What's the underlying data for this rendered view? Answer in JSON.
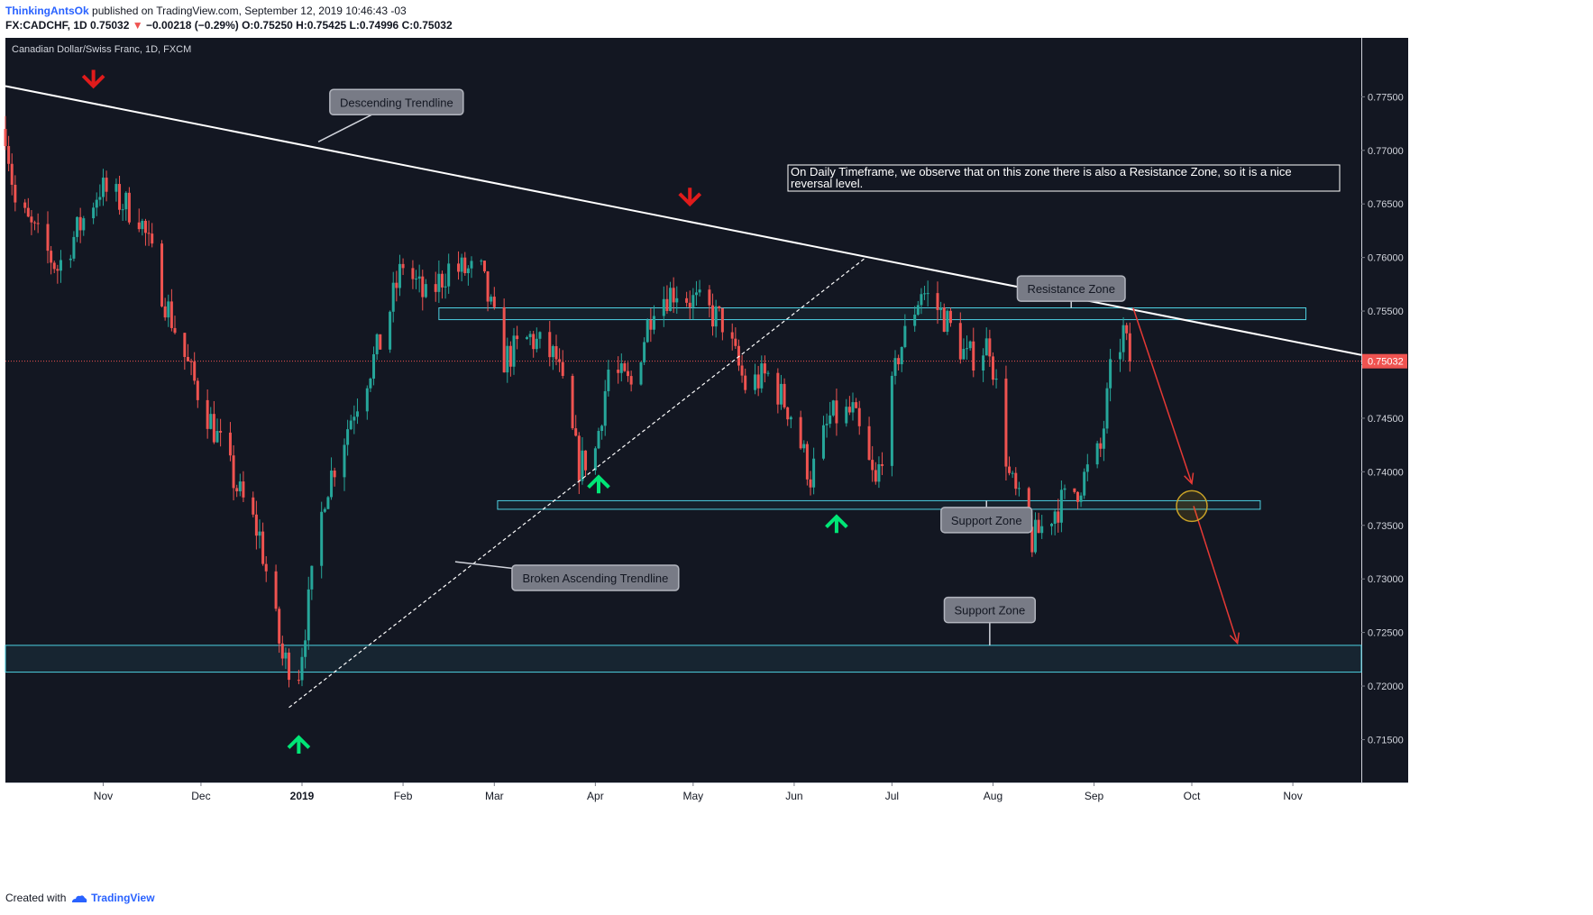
{
  "header": {
    "author": "ThinkingAntsOk",
    "published_text": "published on TradingView.com, September 12, 2019 10:46:43 -03",
    "symbol_line": {
      "symbol": "FX:CADCHF, 1D",
      "last": "0.75032",
      "change_arrow": "▼",
      "change": "−0.00218 (−0.29%)",
      "open": "O:0.75250",
      "high": "H:0.75425",
      "low": "L:0.74996",
      "close": "C:0.75032"
    }
  },
  "footer": {
    "created_with": "Created with",
    "brand": "TradingView",
    "logo_icon": "tradingview-cloud-icon"
  },
  "colors": {
    "background": "#131722",
    "up": "#26a69a",
    "down": "#ef5350",
    "trendline": "#ffffff",
    "zone_border": "#4dd0e1",
    "price_line": "#ef5350",
    "callout_bg": "#787b86",
    "up_arrow": "#00e676",
    "down_arrow": "#e01b1b"
  },
  "chart_data": {
    "type": "candlestick",
    "title": "Canadian Dollar/Swiss Franc, 1D, FXCM",
    "price_axis": {
      "ticks": [
        "0.77500",
        "0.77000",
        "0.76500",
        "0.76000",
        "0.75500",
        "0.75000",
        "0.74500",
        "0.74000",
        "0.73500",
        "0.73000",
        "0.72500",
        "0.72000",
        "0.71500"
      ],
      "last_price_label": "0.75032",
      "range": [
        0.711,
        0.7805
      ]
    },
    "time_axis": {
      "ticks": [
        "Nov",
        "Dec",
        "2019",
        "Feb",
        "Mar",
        "Apr",
        "May",
        "Jun",
        "Jul",
        "Aug",
        "Sep",
        "Oct",
        "Nov"
      ],
      "range": [
        "2018-10-02",
        "2019-11-22"
      ]
    },
    "last_price": 0.75032,
    "key_points": [
      {
        "date": "2018-10-02",
        "price": 0.772
      },
      {
        "date": "2018-10-05",
        "price": 0.765
      },
      {
        "date": "2018-10-18",
        "price": 0.759
      },
      {
        "date": "2018-10-31",
        "price": 0.7665
      },
      {
        "date": "2018-11-12",
        "price": 0.764
      },
      {
        "date": "2018-11-20",
        "price": 0.756
      },
      {
        "date": "2018-11-28",
        "price": 0.749
      },
      {
        "date": "2018-12-05",
        "price": 0.744
      },
      {
        "date": "2018-12-12",
        "price": 0.7385
      },
      {
        "date": "2018-12-19",
        "price": 0.734
      },
      {
        "date": "2018-12-26",
        "price": 0.7225
      },
      {
        "date": "2018-12-31",
        "price": 0.7215
      },
      {
        "date": "2019-01-08",
        "price": 0.738
      },
      {
        "date": "2019-01-17",
        "price": 0.746
      },
      {
        "date": "2019-01-25",
        "price": 0.752
      },
      {
        "date": "2019-02-01",
        "price": 0.7595
      },
      {
        "date": "2019-02-08",
        "price": 0.756
      },
      {
        "date": "2019-02-15",
        "price": 0.759
      },
      {
        "date": "2019-02-25",
        "price": 0.7585
      },
      {
        "date": "2019-03-04",
        "price": 0.7505
      },
      {
        "date": "2019-03-12",
        "price": 0.7525
      },
      {
        "date": "2019-03-20",
        "price": 0.7505
      },
      {
        "date": "2019-03-27",
        "price": 0.7405
      },
      {
        "date": "2019-04-01",
        "price": 0.742
      },
      {
        "date": "2019-04-05",
        "price": 0.7495
      },
      {
        "date": "2019-04-12",
        "price": 0.748
      },
      {
        "date": "2019-04-19",
        "price": 0.756
      },
      {
        "date": "2019-04-26",
        "price": 0.757
      },
      {
        "date": "2019-05-03",
        "price": 0.7555
      },
      {
        "date": "2019-05-10",
        "price": 0.754
      },
      {
        "date": "2019-05-17",
        "price": 0.748
      },
      {
        "date": "2019-05-24",
        "price": 0.749
      },
      {
        "date": "2019-05-31",
        "price": 0.7455
      },
      {
        "date": "2019-06-06",
        "price": 0.7395
      },
      {
        "date": "2019-06-12",
        "price": 0.745
      },
      {
        "date": "2019-06-19",
        "price": 0.7455
      },
      {
        "date": "2019-06-26",
        "price": 0.7385
      },
      {
        "date": "2019-07-03",
        "price": 0.751
      },
      {
        "date": "2019-07-10",
        "price": 0.757
      },
      {
        "date": "2019-07-17",
        "price": 0.7545
      },
      {
        "date": "2019-07-24",
        "price": 0.7505
      },
      {
        "date": "2019-07-31",
        "price": 0.752
      },
      {
        "date": "2019-08-06",
        "price": 0.7395
      },
      {
        "date": "2019-08-13",
        "price": 0.7335
      },
      {
        "date": "2019-08-20",
        "price": 0.7365
      },
      {
        "date": "2019-08-27",
        "price": 0.7385
      },
      {
        "date": "2019-09-03",
        "price": 0.742
      },
      {
        "date": "2019-09-06",
        "price": 0.749
      },
      {
        "date": "2019-09-10",
        "price": 0.753
      },
      {
        "date": "2019-09-12",
        "price": 0.75032
      }
    ],
    "trendlines": [
      {
        "name": "descending-trendline",
        "style": "solid",
        "from": {
          "date": "2018-10-02",
          "price": 0.776
        },
        "to": {
          "date": "2019-11-22",
          "price": 0.7509
        }
      },
      {
        "name": "broken-ascending-trendline",
        "style": "dashed",
        "from": {
          "date": "2018-12-28",
          "price": 0.718
        },
        "to": {
          "date": "2019-06-23",
          "price": 0.76
        }
      }
    ],
    "zones": [
      {
        "name": "resistance-zone",
        "from_date": "2019-02-12",
        "to_date": "2019-11-05",
        "low": 0.7542,
        "high": 0.7553
      },
      {
        "name": "support-zone",
        "from_date": "2019-03-02",
        "to_date": "2019-10-22",
        "low": 0.7365,
        "high": 0.7373
      },
      {
        "name": "lower-support-zone",
        "from_date": "2018-10-02",
        "to_date": "2019-11-22",
        "low": 0.7213,
        "high": 0.7238
      }
    ],
    "projection": [
      {
        "date": "2019-09-13",
        "price": 0.7553
      },
      {
        "date": "2019-10-01",
        "price": 0.7389
      },
      {
        "date": "2019-10-15",
        "price": 0.724
      }
    ],
    "target_circle": {
      "date": "2019-10-01",
      "price": 0.7368
    },
    "markers": [
      {
        "type": "down-arrow",
        "date": "2018-10-29",
        "price": 0.7765
      },
      {
        "type": "down-arrow",
        "date": "2019-04-30",
        "price": 0.7655
      },
      {
        "type": "up-arrow",
        "date": "2018-12-31",
        "price": 0.7147
      },
      {
        "type": "up-arrow",
        "date": "2019-04-02",
        "price": 0.739
      },
      {
        "type": "up-arrow",
        "date": "2019-06-14",
        "price": 0.7353
      }
    ],
    "annotations": [
      {
        "name": "descending-trendline-label",
        "text": "Descending Trendline",
        "date": "2019-01-30",
        "price": 0.7745,
        "pointer": {
          "date": "2019-01-06",
          "price": 0.7708
        }
      },
      {
        "name": "resistance-zone-label",
        "text": "Resistance Zone",
        "date": "2019-08-25",
        "price": 0.7571,
        "pointer": {
          "date": "2019-08-25",
          "price": 0.7553
        }
      },
      {
        "name": "support-zone-label",
        "text": "Support Zone",
        "date": "2019-07-30",
        "price": 0.7355,
        "pointer": {
          "date": "2019-07-30",
          "price": 0.7373
        }
      },
      {
        "name": "broken-ascending-trendline-label",
        "text": "Broken Ascending Trendline",
        "date": "2019-04-01",
        "price": 0.7301,
        "pointer": {
          "date": "2019-02-17",
          "price": 0.7316
        }
      },
      {
        "name": "lower-support-zone-label",
        "text": "Support Zone",
        "date": "2019-07-31",
        "price": 0.7271,
        "pointer": {
          "date": "2019-07-31",
          "price": 0.7238
        }
      }
    ],
    "note": "On Daily Timeframe, we observe that on this zone there is also a Resistance Zone, so it is a nice reversal level."
  }
}
